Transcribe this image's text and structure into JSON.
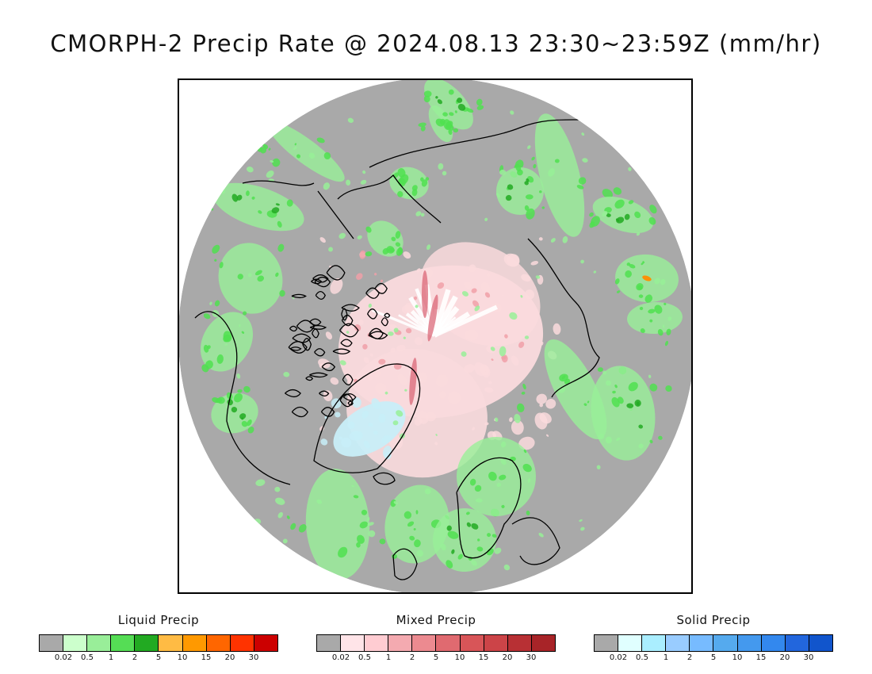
{
  "title": "CMORPH-2 Precip Rate @ 2024.08.13 23:30~23:59Z (mm/hr)",
  "map": {
    "colors": {
      "no_precip": "#a9a9a9",
      "coast": "#000000",
      "liquid_light": "#98f098",
      "liquid_mid": "#50e050",
      "liquid_dark": "#22aa22",
      "mixed_light": "#fadadd",
      "mixed_mid": "#f0a0a8",
      "mixed_dark": "#d86070",
      "solid_light": "#c8eef8",
      "pole_white": "#ffffff",
      "heavy_orange": "#ff8c00"
    }
  },
  "legends": [
    {
      "id": "liquid",
      "title": "Liquid Precip",
      "colors": [
        "#a9a9a9",
        "#ccffcc",
        "#99ee99",
        "#55dd55",
        "#22aa22",
        "#ffbb44",
        "#ff9900",
        "#ff6600",
        "#ff3300",
        "#cc0000"
      ],
      "ticks": [
        "0.02",
        "0.5",
        "1",
        "2",
        "5",
        "10",
        "15",
        "20",
        "30"
      ]
    },
    {
      "id": "mixed",
      "title": "Mixed Precip",
      "colors": [
        "#a9a9a9",
        "#ffe4e8",
        "#ffccd2",
        "#f4aab0",
        "#ec8a90",
        "#e06a70",
        "#d85558",
        "#cc4448",
        "#b83034",
        "#a82428"
      ],
      "ticks": [
        "0.02",
        "0.5",
        "1",
        "2",
        "5",
        "10",
        "15",
        "20",
        "30"
      ]
    },
    {
      "id": "solid",
      "title": "Solid Precip",
      "colors": [
        "#a9a9a9",
        "#e0ffff",
        "#aaeeff",
        "#99ccff",
        "#77bbff",
        "#55aaee",
        "#4499ee",
        "#3388ee",
        "#2266dd",
        "#1155cc"
      ],
      "ticks": [
        "0.02",
        "0.5",
        "1",
        "2",
        "5",
        "10",
        "15",
        "20",
        "30"
      ]
    }
  ]
}
